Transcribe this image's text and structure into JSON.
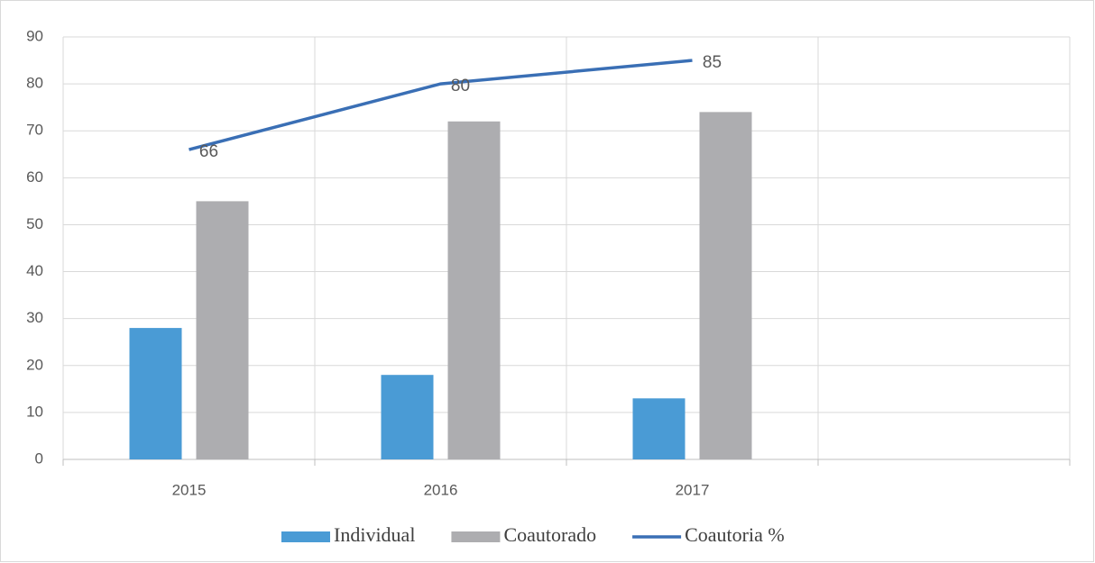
{
  "chart_data": {
    "type": "bar",
    "categories": [
      "2015",
      "2016",
      "2017",
      null
    ],
    "series": [
      {
        "name": "Individual",
        "type": "bar",
        "color": "#4a9bd5",
        "values": [
          28,
          18,
          13,
          null
        ]
      },
      {
        "name": "Coautorado",
        "type": "bar",
        "color": "#adadb0",
        "values": [
          55,
          72,
          74,
          null
        ]
      },
      {
        "name": "Coautoria %",
        "type": "line",
        "color": "#3a6fb5",
        "values": [
          66,
          80,
          85,
          null
        ],
        "data_labels": true
      }
    ],
    "ylim": [
      0,
      90
    ],
    "yticks": [
      0,
      10,
      20,
      30,
      40,
      50,
      60,
      70,
      80,
      90
    ],
    "grid": true,
    "legend": "bottom"
  }
}
